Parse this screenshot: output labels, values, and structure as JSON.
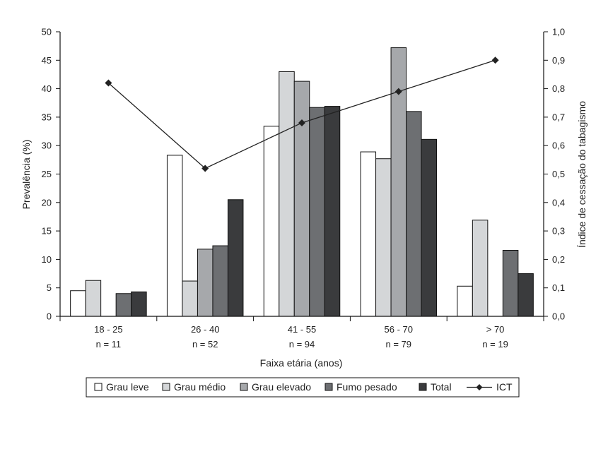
{
  "chart_data": {
    "type": "bar",
    "categories": [
      "18 - 25",
      "26 - 40",
      "41 - 55",
      "56 - 70",
      "> 70"
    ],
    "category_sublabels": [
      "n = 11",
      "n = 52",
      "n = 94",
      "n = 79",
      "n = 19"
    ],
    "xlabel": "Faixa etária (anos)",
    "ylabel": "Prevalência (%)",
    "y2label": "Índice de cessação do tabagismo",
    "ylim": [
      0,
      50
    ],
    "y2lim": [
      0,
      1.0
    ],
    "yticks": [
      "0",
      "5",
      "10",
      "15",
      "20",
      "25",
      "30",
      "35",
      "40",
      "45",
      "50"
    ],
    "y2ticks": [
      "0,0",
      "0,1",
      "0,2",
      "0,3",
      "0,4",
      "0,5",
      "0,6",
      "0,7",
      "0,8",
      "0,9",
      "1,0"
    ],
    "series": [
      {
        "name": "Grau leve",
        "color": "#ffffff",
        "values": [
          4.5,
          28.3,
          33.4,
          28.9,
          5.3
        ]
      },
      {
        "name": "Grau médio",
        "color": "#d4d6d8",
        "values": [
          6.3,
          6.2,
          43.0,
          27.7,
          16.9
        ]
      },
      {
        "name": "Grau elevado",
        "color": "#a6a8ab",
        "values": [
          0,
          11.8,
          41.3,
          47.2,
          0
        ]
      },
      {
        "name": "Fumo pesado",
        "color": "#6d6f72",
        "values": [
          4.0,
          12.4,
          36.7,
          36.0,
          11.6
        ]
      },
      {
        "name": "Total",
        "color": "#3a3b3d",
        "values": [
          4.3,
          20.5,
          36.9,
          31.1,
          7.5
        ]
      }
    ],
    "line_series": {
      "name": "ICT",
      "axis": "right",
      "color": "#222222",
      "marker": "diamond",
      "values": [
        0.82,
        0.52,
        0.68,
        0.79,
        0.9
      ]
    },
    "legend_position": "bottom"
  }
}
